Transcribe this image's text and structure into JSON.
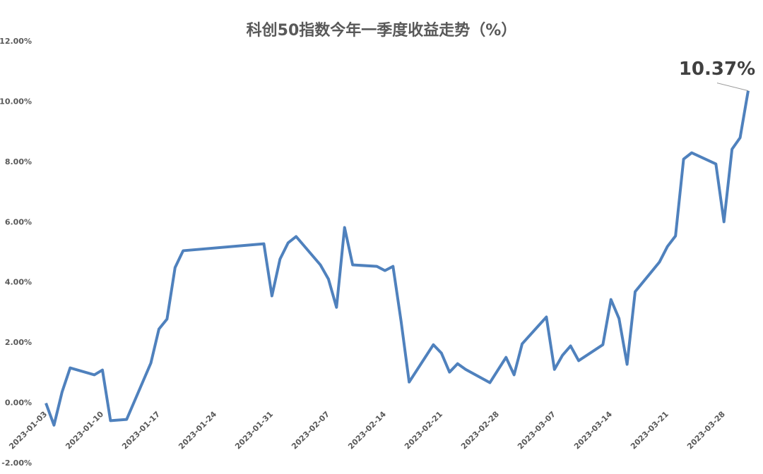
{
  "chart_data": {
    "type": "line",
    "title": "科创50指数今年一季度收益走势（%）",
    "x": [
      "2023-01-03",
      "2023-01-04",
      "2023-01-05",
      "2023-01-06",
      "2023-01-09",
      "2023-01-10",
      "2023-01-11",
      "2023-01-12",
      "2023-01-13",
      "2023-01-16",
      "2023-01-17",
      "2023-01-18",
      "2023-01-19",
      "2023-01-20",
      "2023-01-30",
      "2023-01-31",
      "2023-02-01",
      "2023-02-02",
      "2023-02-03",
      "2023-02-06",
      "2023-02-07",
      "2023-02-08",
      "2023-02-09",
      "2023-02-10",
      "2023-02-13",
      "2023-02-14",
      "2023-02-15",
      "2023-02-16",
      "2023-02-17",
      "2023-02-20",
      "2023-02-21",
      "2023-02-22",
      "2023-02-23",
      "2023-02-24",
      "2023-02-27",
      "2023-02-28",
      "2023-03-01",
      "2023-03-02",
      "2023-03-03",
      "2023-03-06",
      "2023-03-07",
      "2023-03-08",
      "2023-03-09",
      "2023-03-10",
      "2023-03-13",
      "2023-03-14",
      "2023-03-15",
      "2023-03-16",
      "2023-03-17",
      "2023-03-20",
      "2023-03-21",
      "2023-03-22",
      "2023-03-23",
      "2023-03-24",
      "2023-03-27",
      "2023-03-28",
      "2023-03-29",
      "2023-03-30",
      "2023-03-31"
    ],
    "series": [
      {
        "name": "科创50",
        "color": "#4f81bd",
        "values": [
          0.0,
          -0.73,
          0.37,
          1.17,
          0.94,
          1.1,
          -0.58,
          -0.56,
          -0.54,
          1.33,
          2.46,
          2.79,
          4.5,
          5.06,
          5.29,
          3.56,
          4.78,
          5.32,
          5.53,
          4.59,
          4.12,
          3.18,
          5.83,
          4.59,
          4.54,
          4.4,
          4.54,
          2.72,
          0.7,
          1.94,
          1.66,
          1.03,
          1.31,
          1.12,
          0.68,
          1.1,
          1.52,
          0.94,
          1.97,
          2.86,
          1.12,
          1.59,
          1.9,
          1.41,
          1.94,
          3.44,
          2.81,
          1.29,
          3.7,
          4.68,
          5.2,
          5.55,
          8.1,
          8.31,
          7.94,
          6.02,
          8.43,
          8.81,
          10.37
        ],
        "value_labels": [
          null,
          null,
          null,
          null,
          null,
          null,
          null,
          null,
          null,
          null,
          null,
          null,
          null,
          null,
          null,
          null,
          null,
          null,
          null,
          null,
          null,
          null,
          null,
          null,
          null,
          null,
          null,
          null,
          null,
          null,
          null,
          null,
          null,
          null,
          null,
          null,
          null,
          null,
          null,
          null,
          null,
          null,
          null,
          null,
          null,
          null,
          null,
          null,
          null,
          null,
          null,
          null,
          null,
          null,
          null,
          null,
          null,
          null,
          "10.37%"
        ]
      }
    ],
    "xlim": [
      "2023-01-03",
      "2023-03-31"
    ],
    "xticks": [
      "2023-01-03",
      "2023-01-10",
      "2023-01-17",
      "2023-01-24",
      "2023-01-31",
      "2023-02-07",
      "2023-02-14",
      "2023-02-21",
      "2023-02-28",
      "2023-03-07",
      "2023-03-14",
      "2023-03-21",
      "2023-03-28"
    ],
    "ylim": [
      -2,
      12
    ],
    "yticks": [
      {
        "value": -2,
        "label": "-2.00%"
      },
      {
        "value": 0,
        "label": "0.00%"
      },
      {
        "value": 2,
        "label": "2.00%"
      },
      {
        "value": 4,
        "label": "4.00%"
      },
      {
        "value": 6,
        "label": "6.00%"
      },
      {
        "value": 8,
        "label": "8.00%"
      },
      {
        "value": 10,
        "label": "10.00%"
      },
      {
        "value": 12,
        "label": "12.00%"
      }
    ],
    "grid": false
  }
}
